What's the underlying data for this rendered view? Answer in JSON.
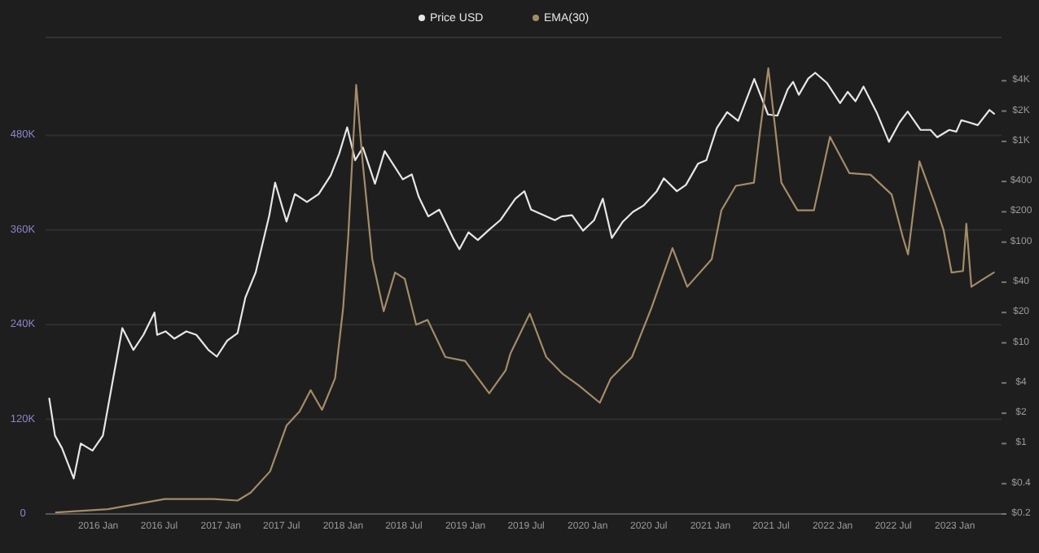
{
  "chart_data": {
    "type": "line",
    "legend": "top",
    "grid": "y",
    "log": "y2",
    "line_style": "solid",
    "marker": "none",
    "xlim": [
      "2015-07-28",
      "2023-05-20"
    ],
    "xticks": [
      {
        "value": "2016-01-01",
        "label": "2016 Jan"
      },
      {
        "value": "2016-07-01",
        "label": "2016 Jul"
      },
      {
        "value": "2017-01-01",
        "label": "2017 Jan"
      },
      {
        "value": "2017-07-01",
        "label": "2017 Jul"
      },
      {
        "value": "2018-01-01",
        "label": "2018 Jan"
      },
      {
        "value": "2018-07-01",
        "label": "2018 Jul"
      },
      {
        "value": "2019-01-01",
        "label": "2019 Jan"
      },
      {
        "value": "2019-07-01",
        "label": "2019 Jul"
      },
      {
        "value": "2020-01-01",
        "label": "2020 Jan"
      },
      {
        "value": "2020-07-01",
        "label": "2020 Jul"
      },
      {
        "value": "2021-01-01",
        "label": "2021 Jan"
      },
      {
        "value": "2021-07-01",
        "label": "2021 Jul"
      },
      {
        "value": "2022-01-01",
        "label": "2022 Jan"
      },
      {
        "value": "2022-07-01",
        "label": "2022 Jul"
      },
      {
        "value": "2023-01-01",
        "label": "2023 Jan"
      }
    ],
    "ylim": [
      0,
      600000
    ],
    "yticks": [
      0,
      {
        "value": 120000,
        "label": "120K"
      },
      {
        "value": 240000,
        "label": "240K"
      },
      {
        "value": 360000,
        "label": "360K"
      },
      {
        "value": 480000,
        "label": "480K"
      }
    ],
    "y2lim": [
      0.2,
      10000
    ],
    "y2ticks": [
      {
        "value": 0.2,
        "label": "$0.2"
      },
      {
        "value": 0.4,
        "label": "$0.4"
      },
      {
        "value": 1,
        "label": "$1"
      },
      {
        "value": 2,
        "label": "$2"
      },
      {
        "value": 4,
        "label": "$4"
      },
      {
        "value": 10,
        "label": "$10"
      },
      {
        "value": 20,
        "label": "$20"
      },
      {
        "value": 40,
        "label": "$40"
      },
      {
        "value": 100,
        "label": "$100"
      },
      {
        "value": 200,
        "label": "$200"
      },
      {
        "value": 400,
        "label": "$400"
      },
      {
        "value": 1000,
        "label": "$1K"
      },
      {
        "value": 2000,
        "label": "$2K"
      },
      {
        "value": 4000,
        "label": "$4K"
      }
    ],
    "series": [
      {
        "name": "Price USD",
        "color": "#e6e6e6",
        "axis": "y2",
        "x": [
          "2015-08-08",
          "2015-08-25",
          "2015-09-15",
          "2015-10-20",
          "2015-11-10",
          "2015-12-15",
          "2016-01-15",
          "2016-02-15",
          "2016-03-13",
          "2016-04-15",
          "2016-05-15",
          "2016-06-17",
          "2016-06-25",
          "2016-07-20",
          "2016-08-15",
          "2016-09-20",
          "2016-10-20",
          "2016-11-25",
          "2016-12-20",
          "2017-01-20",
          "2017-02-20",
          "2017-03-15",
          "2017-04-15",
          "2017-05-25",
          "2017-06-12",
          "2017-07-16",
          "2017-08-10",
          "2017-09-15",
          "2017-10-20",
          "2017-11-25",
          "2017-12-20",
          "2018-01-13",
          "2018-02-06",
          "2018-03-01",
          "2018-04-06",
          "2018-05-05",
          "2018-06-28",
          "2018-07-25",
          "2018-08-15",
          "2018-09-12",
          "2018-10-15",
          "2018-11-25",
          "2018-12-14",
          "2019-01-10",
          "2019-02-07",
          "2019-03-15",
          "2019-04-15",
          "2019-05-30",
          "2019-06-26",
          "2019-07-16",
          "2019-08-15",
          "2019-09-25",
          "2019-10-15",
          "2019-11-15",
          "2019-12-18",
          "2020-01-20",
          "2020-02-15",
          "2020-03-13",
          "2020-04-15",
          "2020-05-15",
          "2020-06-15",
          "2020-07-25",
          "2020-08-15",
          "2020-09-23",
          "2020-10-20",
          "2020-11-25",
          "2020-12-20",
          "2021-01-20",
          "2021-02-20",
          "2021-03-25",
          "2021-05-12",
          "2021-06-22",
          "2021-07-20",
          "2021-08-20",
          "2021-09-05",
          "2021-09-22",
          "2021-10-20",
          "2021-11-10",
          "2021-12-15",
          "2022-01-23",
          "2022-02-15",
          "2022-03-10",
          "2022-04-03",
          "2022-05-12",
          "2022-06-18",
          "2022-07-20",
          "2022-08-13",
          "2022-09-20",
          "2022-10-20",
          "2022-11-09",
          "2022-12-15",
          "2023-01-05",
          "2023-01-20",
          "2023-02-10",
          "2023-03-10",
          "2023-04-14",
          "2023-04-28"
        ],
        "values": [
          2.8,
          1.2,
          0.9,
          0.45,
          1.0,
          0.85,
          1.2,
          4.5,
          14,
          8.5,
          12,
          20,
          12,
          13,
          11,
          13,
          12,
          8.5,
          7.3,
          10.5,
          12.5,
          28,
          50,
          180,
          390,
          160,
          300,
          250,
          300,
          460,
          750,
          1380,
          650,
          870,
          380,
          800,
          420,
          470,
          280,
          180,
          210,
          110,
          85,
          125,
          105,
          135,
          165,
          270,
          320,
          210,
          190,
          165,
          180,
          185,
          130,
          165,
          270,
          110,
          160,
          200,
          230,
          320,
          430,
          320,
          370,
          600,
          650,
          1350,
          1950,
          1600,
          4170,
          1850,
          1800,
          3300,
          3900,
          2900,
          4200,
          4800,
          3800,
          2400,
          3100,
          2500,
          3500,
          1950,
          990,
          1550,
          1980,
          1300,
          1300,
          1100,
          1300,
          1250,
          1620,
          1550,
          1450,
          2050,
          1880
        ]
      },
      {
        "name": "EMA(30)",
        "color": "#a48c68",
        "x": [
          "2015-08-28",
          "2016-01-30",
          "2016-07-18",
          "2016-12-10",
          "2017-02-20",
          "2017-03-31",
          "2017-05-28",
          "2017-07-16",
          "2017-08-24",
          "2017-09-26",
          "2017-10-30",
          "2017-12-08",
          "2018-01-01",
          "2018-01-16",
          "2018-02-09",
          "2018-02-28",
          "2018-03-29",
          "2018-05-02",
          "2018-06-05",
          "2018-07-04",
          "2018-08-07",
          "2018-09-10",
          "2018-11-02",
          "2018-12-31",
          "2019-03-13",
          "2019-05-01",
          "2019-05-15",
          "2019-07-12",
          "2019-08-30",
          "2019-10-17",
          "2019-12-05",
          "2020-02-06",
          "2020-03-10",
          "2020-05-12",
          "2020-07-09",
          "2020-09-10",
          "2020-10-24",
          "2021-01-05",
          "2021-02-03",
          "2021-03-18",
          "2021-05-11",
          "2021-05-30",
          "2021-06-23",
          "2021-08-01",
          "2021-09-18",
          "2021-11-06",
          "2021-12-24",
          "2022-02-20",
          "2022-04-24",
          "2022-06-26",
          "2022-07-30",
          "2022-08-14",
          "2022-09-17",
          "2022-11-04",
          "2022-11-28",
          "2022-12-22",
          "2023-01-25",
          "2023-02-04",
          "2023-02-19",
          "2023-03-20",
          "2023-04-27"
        ],
        "values": [
          2000,
          6000,
          19000,
          19000,
          17000,
          27000,
          54000,
          112000,
          130000,
          157000,
          132000,
          172000,
          261000,
          350000,
          544000,
          447000,
          323000,
          257000,
          306000,
          298000,
          240000,
          246000,
          199000,
          194000,
          153000,
          182000,
          203000,
          254000,
          199000,
          178000,
          163000,
          141000,
          172000,
          199000,
          261000,
          337000,
          288000,
          323000,
          385000,
          416000,
          420000,
          488000,
          565000,
          420000,
          385000,
          385000,
          478000,
          432000,
          430000,
          405000,
          350000,
          329000,
          447000,
          391000,
          360000,
          306000,
          308000,
          368000,
          288000,
          296000,
          306000
        ]
      }
    ]
  }
}
